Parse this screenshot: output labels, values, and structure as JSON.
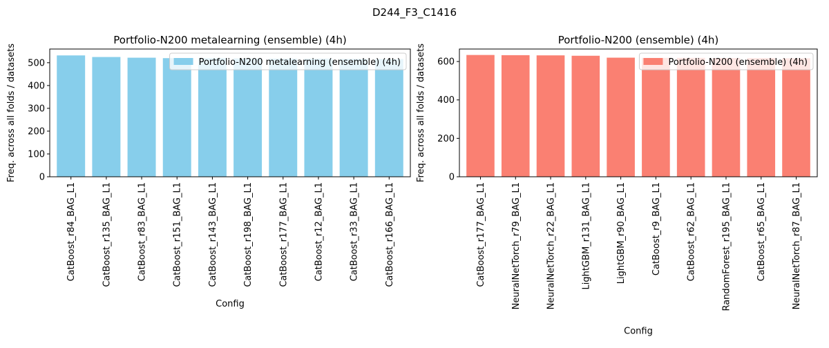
{
  "suptitle": "D244_F3_C1416",
  "chart_data": [
    {
      "type": "bar",
      "title": "Portfolio-N200 metalearning (ensemble) (4h)",
      "xlabel": "Config",
      "ylabel": "Freq. across all folds / datasets",
      "ylim": [
        0,
        560
      ],
      "yticks": [
        0,
        100,
        200,
        300,
        400,
        500
      ],
      "legend": "top-right",
      "color": "#87ceeb",
      "series": [
        {
          "name": "Portfolio-N200 metalearning (ensemble) (4h)",
          "values": [
            532,
            525,
            522,
            520,
            520,
            519,
            518,
            518,
            517,
            516
          ]
        }
      ],
      "categories": [
        "CatBoost_r84_BAG_L1",
        "CatBoost_r135_BAG_L1",
        "CatBoost_r83_BAG_L1",
        "CatBoost_r151_BAG_L1",
        "CatBoost_r143_BAG_L1",
        "CatBoost_r198_BAG_L1",
        "CatBoost_r177_BAG_L1",
        "CatBoost_r12_BAG_L1",
        "CatBoost_r33_BAG_L1",
        "CatBoost_r166_BAG_L1"
      ]
    },
    {
      "type": "bar",
      "title": "Portfolio-N200 (ensemble) (4h)",
      "xlabel": "Config",
      "ylabel": "Freq. across all folds / datasets",
      "ylim": [
        0,
        665
      ],
      "yticks": [
        0,
        200,
        400,
        600
      ],
      "legend": "top-right",
      "color": "#fa8072",
      "series": [
        {
          "name": "Portfolio-N200 (ensemble) (4h)",
          "values": [
            634,
            633,
            632,
            630,
            620,
            619,
            619,
            618,
            618,
            617
          ]
        }
      ],
      "categories": [
        "CatBoost_r177_BAG_L1",
        "NeuralNetTorch_r79_BAG_L1",
        "NeuralNetTorch_r22_BAG_L1",
        "LightGBM_r131_BAG_L1",
        "LightGBM_r90_BAG_L1",
        "CatBoost_r9_BAG_L1",
        "CatBoost_r62_BAG_L1",
        "RandomForest_r195_BAG_L1",
        "CatBoost_r65_BAG_L1",
        "NeuralNetTorch_r87_BAG_L1"
      ]
    }
  ]
}
